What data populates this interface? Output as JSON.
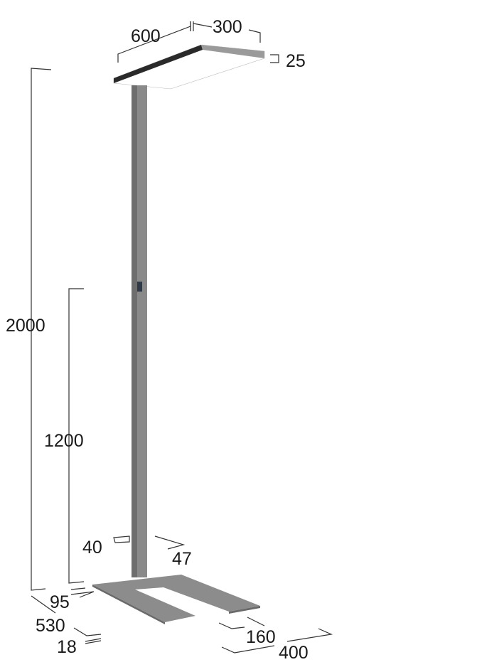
{
  "dimensions": {
    "head_length": "600",
    "head_width": "300",
    "head_thickness": "25",
    "total_height": "2000",
    "switch_height": "1200",
    "pole_width": "40",
    "pole_depth": "47",
    "base_offset": "95",
    "base_depth": "530",
    "base_thickness": "18",
    "foot_width": "160",
    "base_width": "400"
  },
  "colors": {
    "lamp_body": "#8a8a8a",
    "head_edge": "#2a2a2a",
    "base": "#8c8c8c"
  }
}
